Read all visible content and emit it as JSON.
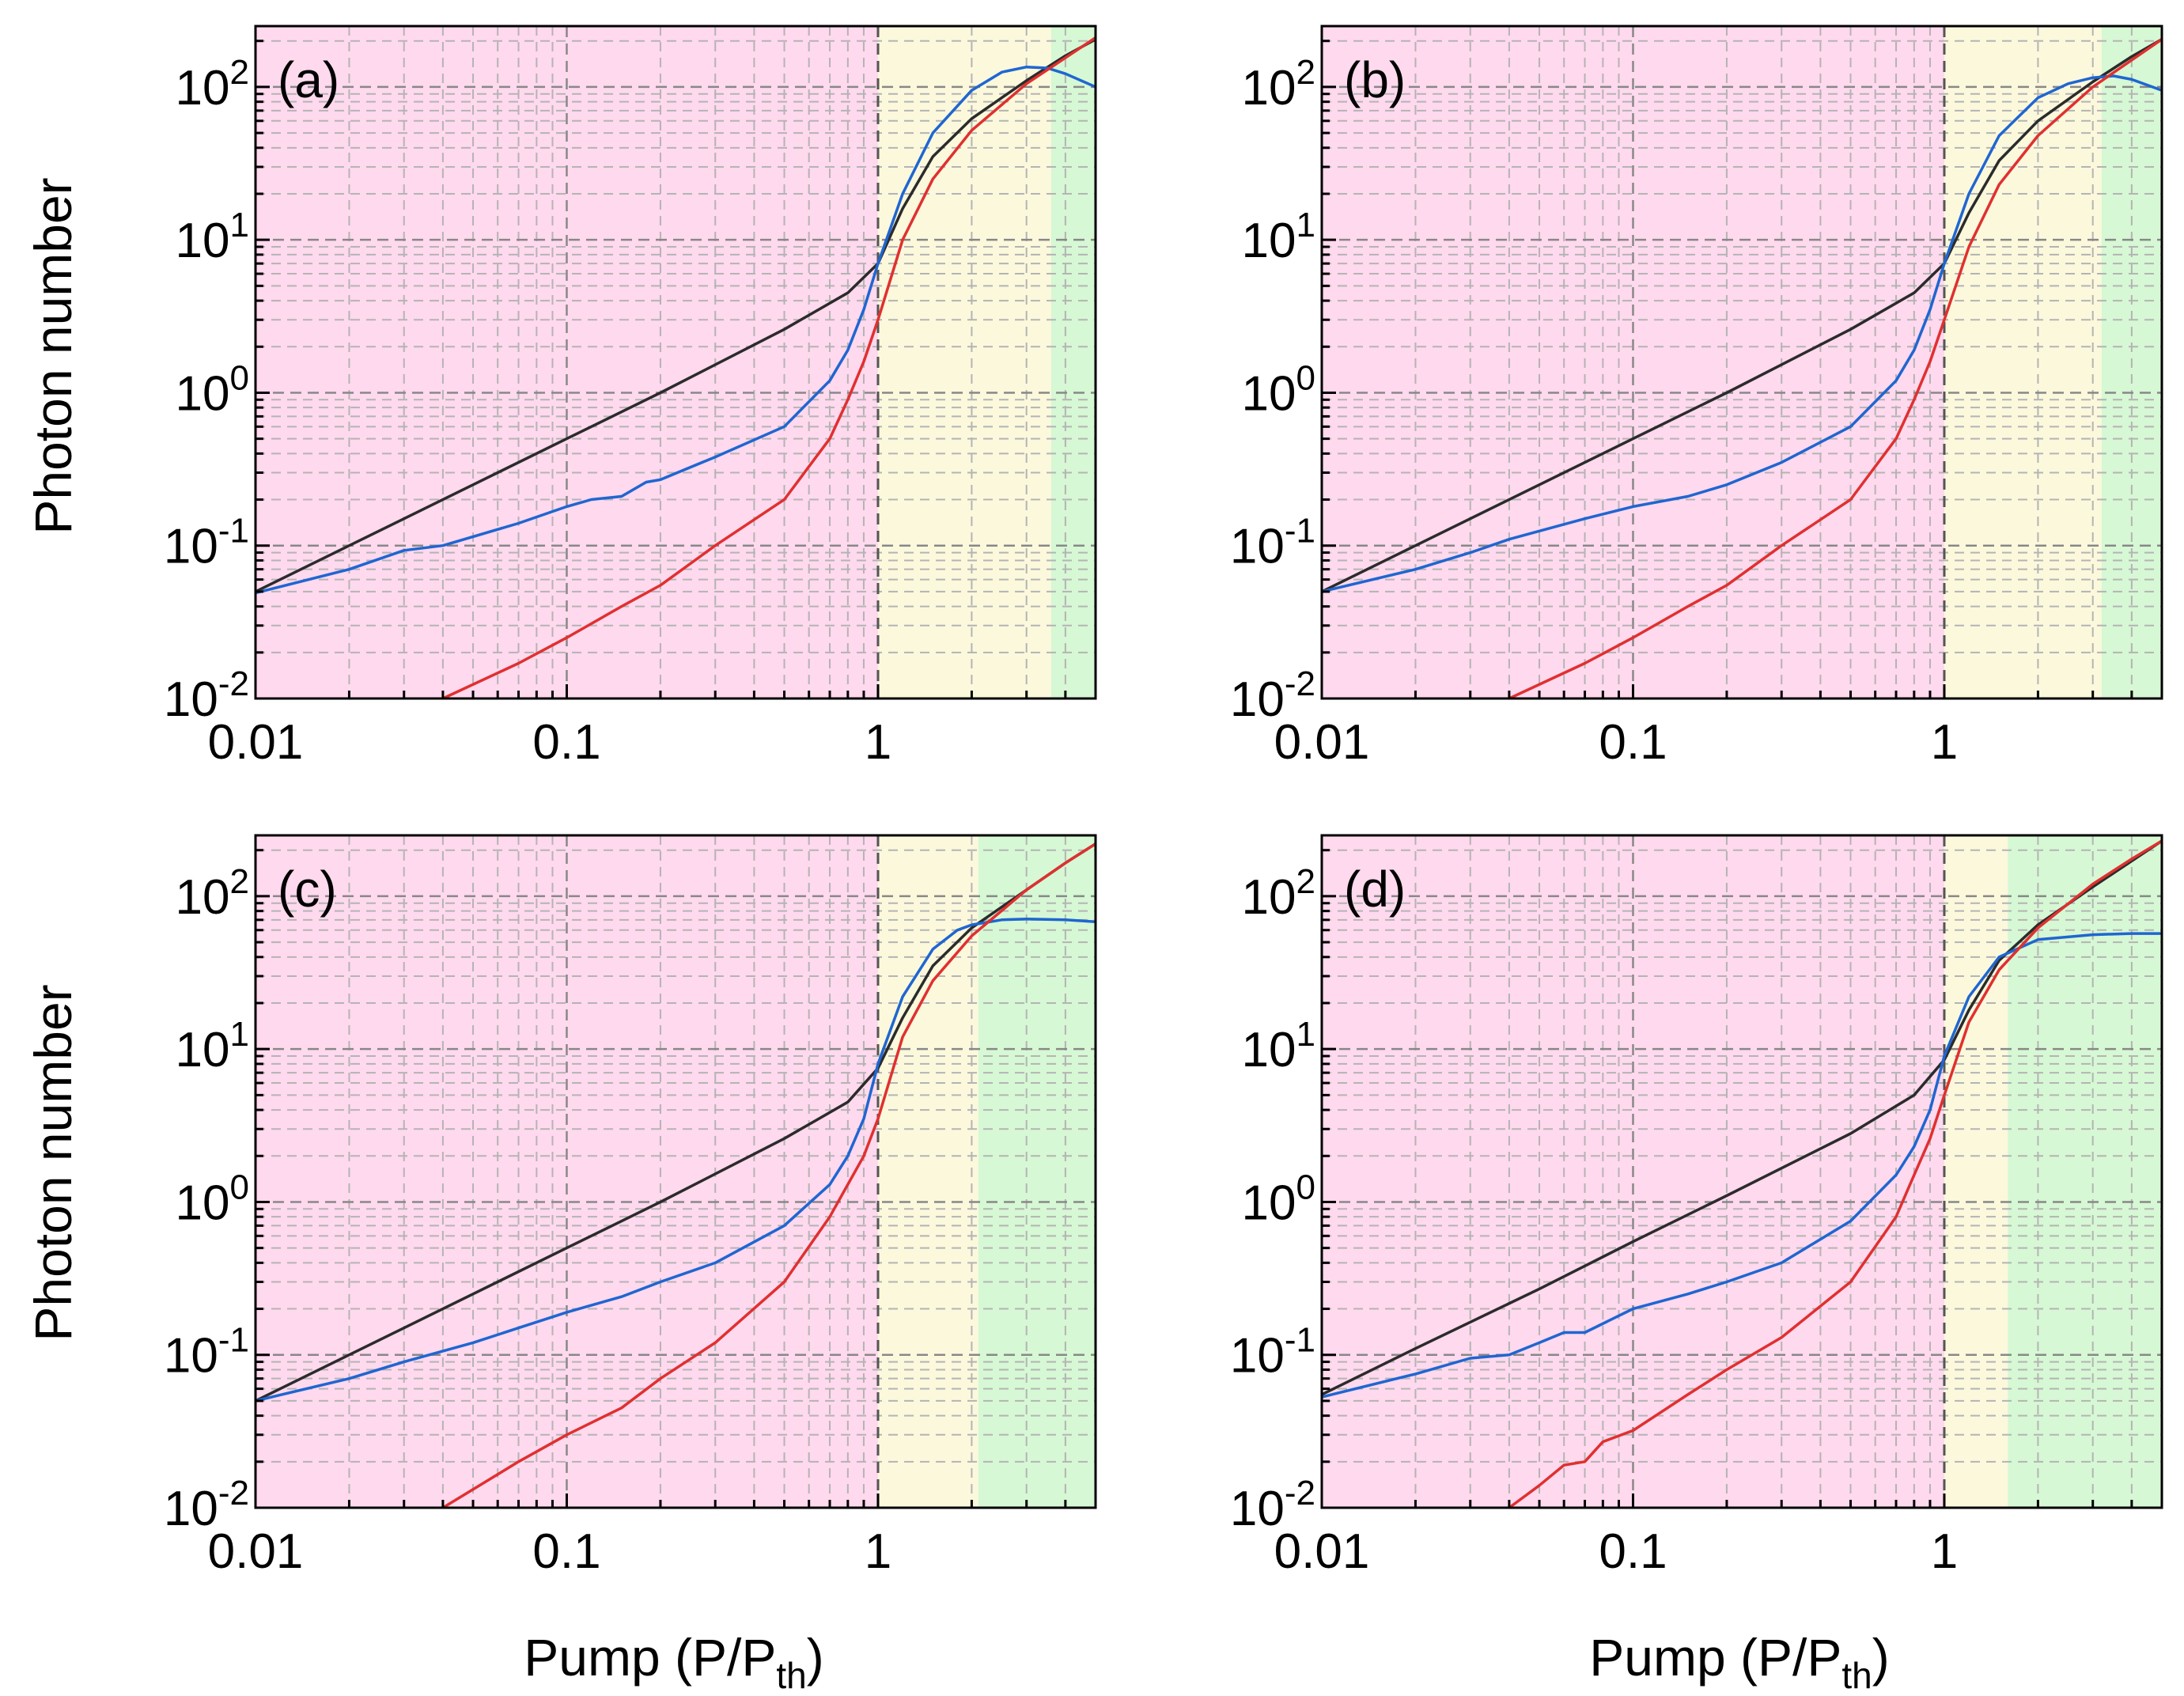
{
  "figure": {
    "ylabel": "Photon number",
    "xlabel_main": "Pump (P/P",
    "xlabel_sub": "th",
    "xlabel_close": ")"
  },
  "colors": {
    "region_pink": "#ffd9ee",
    "region_yellow": "#fbf8dc",
    "region_green": "#d6f8d4",
    "black_curve": "#2b2b2b",
    "blue_curve": "#1f66d1",
    "red_curve": "#e03030",
    "grid_major": "#888888",
    "grid_minor": "#b4b4b4"
  },
  "chart_data": [
    {
      "type": "line",
      "panel": "(a)",
      "xscale": "log",
      "yscale": "log",
      "xlim": [
        0.01,
        5
      ],
      "ylim": [
        0.01,
        250
      ],
      "xticks": [
        "0.01",
        "0.1",
        "1"
      ],
      "yticks": [
        {
          "base": "10",
          "exp": "-2"
        },
        {
          "base": "10",
          "exp": "-1"
        },
        {
          "base": "10",
          "exp": "0"
        },
        {
          "base": "10",
          "exp": "1"
        },
        {
          "base": "10",
          "exp": "2"
        }
      ],
      "threshold_x": 1,
      "regions": [
        {
          "name": "below-threshold",
          "x": [
            0.01,
            1
          ]
        },
        {
          "name": "transition",
          "x": [
            1,
            3.6
          ]
        },
        {
          "name": "lasing",
          "x": [
            3.6,
            5
          ]
        }
      ],
      "series": [
        {
          "name": "black",
          "x": [
            0.01,
            0.02,
            0.05,
            0.1,
            0.2,
            0.5,
            0.8,
            1,
            1.2,
            1.5,
            2,
            3,
            4,
            5
          ],
          "y": [
            0.05,
            0.1,
            0.25,
            0.5,
            1.0,
            2.6,
            4.5,
            7,
            16,
            35,
            62,
            110,
            160,
            205
          ]
        },
        {
          "name": "blue",
          "x": [
            0.01,
            0.02,
            0.03,
            0.04,
            0.07,
            0.1,
            0.12,
            0.15,
            0.18,
            0.2,
            0.3,
            0.5,
            0.7,
            0.8,
            0.9,
            1,
            1.2,
            1.5,
            2,
            2.5,
            3,
            3.5,
            4,
            5
          ],
          "y": [
            0.049,
            0.07,
            0.093,
            0.1,
            0.14,
            0.18,
            0.2,
            0.21,
            0.26,
            0.27,
            0.38,
            0.6,
            1.2,
            1.9,
            3.5,
            7,
            20,
            50,
            95,
            125,
            135,
            133,
            122,
            100
          ]
        },
        {
          "name": "red",
          "x": [
            0.04,
            0.07,
            0.1,
            0.15,
            0.2,
            0.3,
            0.5,
            0.7,
            0.8,
            0.9,
            1,
            1.2,
            1.5,
            2,
            3,
            4,
            5
          ],
          "y": [
            0.01,
            0.017,
            0.025,
            0.04,
            0.055,
            0.1,
            0.2,
            0.5,
            0.9,
            1.6,
            3,
            10,
            25,
            52,
            105,
            155,
            210
          ]
        }
      ]
    },
    {
      "type": "line",
      "panel": "(b)",
      "xscale": "log",
      "yscale": "log",
      "xlim": [
        0.01,
        5
      ],
      "ylim": [
        0.01,
        250
      ],
      "xticks": [
        "0.01",
        "0.1",
        "1"
      ],
      "yticks": [
        {
          "base": "10",
          "exp": "-2"
        },
        {
          "base": "10",
          "exp": "-1"
        },
        {
          "base": "10",
          "exp": "0"
        },
        {
          "base": "10",
          "exp": "1"
        },
        {
          "base": "10",
          "exp": "2"
        }
      ],
      "threshold_x": 1,
      "regions": [
        {
          "name": "below-threshold",
          "x": [
            0.01,
            1
          ]
        },
        {
          "name": "transition",
          "x": [
            1,
            3.2
          ]
        },
        {
          "name": "lasing",
          "x": [
            3.2,
            5
          ]
        }
      ],
      "series": [
        {
          "name": "black",
          "x": [
            0.01,
            0.02,
            0.05,
            0.1,
            0.2,
            0.5,
            0.8,
            1,
            1.2,
            1.5,
            2,
            3,
            4,
            5
          ],
          "y": [
            0.05,
            0.1,
            0.25,
            0.5,
            1.0,
            2.6,
            4.5,
            7,
            15,
            33,
            60,
            108,
            158,
            205
          ]
        },
        {
          "name": "blue",
          "x": [
            0.01,
            0.02,
            0.03,
            0.04,
            0.07,
            0.1,
            0.15,
            0.2,
            0.3,
            0.5,
            0.7,
            0.8,
            0.9,
            1,
            1.2,
            1.5,
            2,
            2.5,
            3,
            3.5,
            4,
            5
          ],
          "y": [
            0.05,
            0.07,
            0.09,
            0.11,
            0.15,
            0.18,
            0.21,
            0.25,
            0.35,
            0.6,
            1.2,
            1.9,
            3.5,
            7,
            20,
            48,
            85,
            105,
            115,
            118,
            112,
            95
          ]
        },
        {
          "name": "red",
          "x": [
            0.04,
            0.07,
            0.1,
            0.15,
            0.2,
            0.3,
            0.5,
            0.7,
            0.8,
            0.9,
            1,
            1.2,
            1.5,
            2,
            3,
            4,
            5
          ],
          "y": [
            0.01,
            0.017,
            0.025,
            0.04,
            0.055,
            0.1,
            0.2,
            0.5,
            0.9,
            1.6,
            3,
            9,
            23,
            48,
            100,
            150,
            205
          ]
        }
      ]
    },
    {
      "type": "line",
      "panel": "(c)",
      "xscale": "log",
      "yscale": "log",
      "xlim": [
        0.01,
        5
      ],
      "ylim": [
        0.01,
        250
      ],
      "xticks": [
        "0.01",
        "0.1",
        "1"
      ],
      "yticks": [
        {
          "base": "10",
          "exp": "-2"
        },
        {
          "base": "10",
          "exp": "-1"
        },
        {
          "base": "10",
          "exp": "0"
        },
        {
          "base": "10",
          "exp": "1"
        },
        {
          "base": "10",
          "exp": "2"
        }
      ],
      "threshold_x": 1,
      "regions": [
        {
          "name": "below-threshold",
          "x": [
            0.01,
            1
          ]
        },
        {
          "name": "transition",
          "x": [
            1,
            2.1
          ]
        },
        {
          "name": "lasing",
          "x": [
            2.1,
            5
          ]
        }
      ],
      "series": [
        {
          "name": "black",
          "x": [
            0.01,
            0.02,
            0.05,
            0.1,
            0.2,
            0.5,
            0.8,
            1,
            1.2,
            1.5,
            2,
            3,
            4,
            5
          ],
          "y": [
            0.05,
            0.1,
            0.25,
            0.5,
            1.0,
            2.6,
            4.5,
            7.5,
            16,
            35,
            62,
            110,
            165,
            220
          ]
        },
        {
          "name": "blue",
          "x": [
            0.01,
            0.02,
            0.03,
            0.05,
            0.07,
            0.1,
            0.15,
            0.2,
            0.3,
            0.5,
            0.7,
            0.8,
            0.9,
            1,
            1.2,
            1.5,
            1.8,
            2,
            2.5,
            3,
            4,
            5
          ],
          "y": [
            0.05,
            0.07,
            0.09,
            0.12,
            0.15,
            0.19,
            0.24,
            0.3,
            0.4,
            0.7,
            1.3,
            2,
            3.5,
            8,
            22,
            45,
            60,
            65,
            70,
            71,
            70,
            68
          ]
        },
        {
          "name": "red",
          "x": [
            0.04,
            0.07,
            0.1,
            0.15,
            0.2,
            0.3,
            0.5,
            0.7,
            0.8,
            0.9,
            1,
            1.2,
            1.5,
            2,
            3,
            4,
            5
          ],
          "y": [
            0.01,
            0.02,
            0.03,
            0.045,
            0.07,
            0.12,
            0.3,
            0.8,
            1.3,
            2,
            3.5,
            12,
            28,
            55,
            110,
            165,
            220
          ]
        }
      ]
    },
    {
      "type": "line",
      "panel": "(d)",
      "xscale": "log",
      "yscale": "log",
      "xlim": [
        0.01,
        5
      ],
      "ylim": [
        0.01,
        250
      ],
      "xticks": [
        "0.01",
        "0.1",
        "1"
      ],
      "yticks": [
        {
          "base": "10",
          "exp": "-2"
        },
        {
          "base": "10",
          "exp": "-1"
        },
        {
          "base": "10",
          "exp": "0"
        },
        {
          "base": "10",
          "exp": "1"
        },
        {
          "base": "10",
          "exp": "2"
        }
      ],
      "threshold_x": 1,
      "regions": [
        {
          "name": "below-threshold",
          "x": [
            0.01,
            1
          ]
        },
        {
          "name": "transition",
          "x": [
            1,
            1.6
          ]
        },
        {
          "name": "lasing",
          "x": [
            1.6,
            5
          ]
        }
      ],
      "series": [
        {
          "name": "black",
          "x": [
            0.01,
            0.02,
            0.05,
            0.1,
            0.2,
            0.5,
            0.8,
            1,
            1.2,
            1.5,
            2,
            3,
            4,
            5
          ],
          "y": [
            0.055,
            0.11,
            0.27,
            0.55,
            1.1,
            2.8,
            5,
            8.5,
            18,
            38,
            65,
            115,
            170,
            230
          ]
        },
        {
          "name": "blue",
          "x": [
            0.01,
            0.02,
            0.03,
            0.04,
            0.05,
            0.06,
            0.07,
            0.1,
            0.15,
            0.2,
            0.3,
            0.5,
            0.7,
            0.8,
            0.9,
            1,
            1.2,
            1.5,
            2,
            3,
            4,
            5
          ],
          "y": [
            0.053,
            0.075,
            0.095,
            0.1,
            0.12,
            0.14,
            0.14,
            0.2,
            0.25,
            0.3,
            0.4,
            0.75,
            1.5,
            2.3,
            4,
            9,
            22,
            40,
            52,
            56,
            57,
            57
          ]
        },
        {
          "name": "red",
          "x": [
            0.04,
            0.05,
            0.06,
            0.07,
            0.08,
            0.1,
            0.15,
            0.2,
            0.3,
            0.5,
            0.7,
            0.8,
            0.9,
            1,
            1.2,
            1.5,
            2,
            3,
            4,
            5
          ],
          "y": [
            0.01,
            0.014,
            0.019,
            0.02,
            0.027,
            0.032,
            0.055,
            0.08,
            0.13,
            0.3,
            0.8,
            1.5,
            2.6,
            5,
            15,
            33,
            62,
            120,
            175,
            230
          ]
        }
      ]
    }
  ]
}
